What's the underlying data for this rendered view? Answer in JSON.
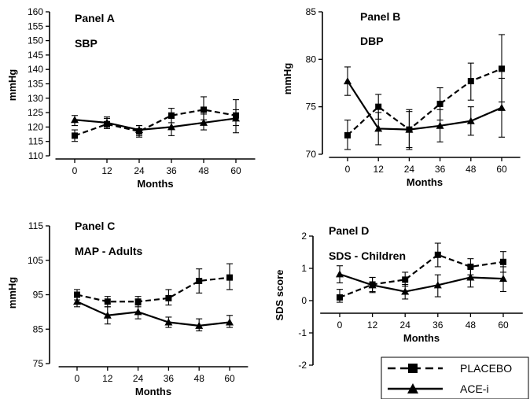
{
  "chart_data": [
    {
      "type": "line",
      "panel_label": "Panel A",
      "measure": "SBP",
      "xlabel": "Months",
      "ylabel": "mmHg",
      "x": [
        0,
        12,
        24,
        36,
        48,
        60
      ],
      "xlim": [
        -6,
        66
      ],
      "ylim": [
        110,
        160
      ],
      "yticks": [
        110,
        115,
        120,
        125,
        130,
        135,
        140,
        145,
        150,
        155,
        160
      ],
      "series": [
        {
          "name": "PLACEBO",
          "style": "dashed",
          "marker": "square",
          "values": [
            117,
            121,
            118.5,
            124,
            126,
            124
          ],
          "err_low": [
            115,
            119.5,
            116.5,
            121.5,
            122.5,
            118
          ],
          "err_high": [
            119,
            123,
            120.5,
            126.5,
            130.5,
            129.5
          ]
        },
        {
          "name": "ACE-i",
          "style": "solid",
          "marker": "triangle",
          "values": [
            122.5,
            121.5,
            119,
            120,
            121.5,
            123
          ],
          "err_low": [
            120.5,
            119.5,
            117,
            117,
            119,
            120.5
          ],
          "err_high": [
            124,
            123.5,
            120.5,
            123,
            124.5,
            126
          ]
        }
      ]
    },
    {
      "type": "line",
      "panel_label": "Panel B",
      "measure": "DBP",
      "xlabel": "Months",
      "ylabel": "mmHg",
      "x": [
        0,
        12,
        24,
        36,
        48,
        60
      ],
      "xlim": [
        -6,
        66
      ],
      "ylim": [
        70,
        85
      ],
      "yticks": [
        70,
        75,
        80,
        85
      ],
      "series": [
        {
          "name": "PLACEBO",
          "style": "dashed",
          "marker": "square",
          "values": [
            72,
            75,
            72.6,
            75.3,
            77.7,
            79
          ],
          "err_low": [
            70.5,
            73.7,
            70.5,
            73.6,
            75.7,
            75.5
          ],
          "err_high": [
            73.6,
            76.3,
            74.7,
            77,
            79.6,
            82.6
          ]
        },
        {
          "name": "ACE-i",
          "style": "solid",
          "marker": "triangle",
          "values": [
            77.7,
            72.7,
            72.6,
            73,
            73.5,
            74.9
          ],
          "err_low": [
            76.2,
            71,
            70.7,
            71.3,
            72,
            71.8
          ],
          "err_high": [
            79.2,
            74.4,
            74.5,
            74.7,
            75,
            78
          ]
        }
      ]
    },
    {
      "type": "line",
      "panel_label": "Panel C",
      "measure": "MAP - Adults",
      "xlabel": "Months",
      "ylabel": "mmHg",
      "x": [
        0,
        12,
        24,
        36,
        48,
        60
      ],
      "xlim": [
        -6,
        66
      ],
      "ylim": [
        75,
        115
      ],
      "yticks": [
        75,
        85,
        95,
        105,
        115
      ],
      "series": [
        {
          "name": "PLACEBO",
          "style": "dashed",
          "marker": "square",
          "values": [
            95,
            93,
            93,
            94,
            99,
            100
          ],
          "err_low": [
            93.5,
            91.5,
            91.5,
            92,
            95.5,
            96.5
          ],
          "err_high": [
            96.5,
            94.5,
            94.5,
            96.5,
            102.5,
            104
          ]
        },
        {
          "name": "ACE-i",
          "style": "solid",
          "marker": "triangle",
          "values": [
            93,
            89,
            90,
            87,
            86,
            87
          ],
          "err_low": [
            91.5,
            86.5,
            88,
            85.5,
            84.5,
            85.5
          ],
          "err_high": [
            94.5,
            91.5,
            92,
            88.5,
            88,
            89
          ]
        }
      ]
    },
    {
      "type": "line",
      "panel_label": "Panel D",
      "measure": "SDS - Children",
      "xlabel": "Months",
      "ylabel": "SDS score",
      "x": [
        0,
        12,
        24,
        36,
        48,
        60
      ],
      "xlim": [
        -6,
        66
      ],
      "ylim": [
        -2,
        2
      ],
      "yticks": [
        -2,
        -1,
        0,
        1,
        2
      ],
      "series": [
        {
          "name": "PLACEBO",
          "style": "dashed",
          "marker": "square",
          "values": [
            0.1,
            0.5,
            0.65,
            1.42,
            1.05,
            1.2
          ],
          "err_low": [
            -0.05,
            0.28,
            0.45,
            1.05,
            0.8,
            0.88
          ],
          "err_high": [
            0.35,
            0.72,
            0.88,
            1.78,
            1.3,
            1.52
          ]
        },
        {
          "name": "ACE-i",
          "style": "solid",
          "marker": "triangle",
          "values": [
            0.82,
            0.48,
            0.28,
            0.48,
            0.72,
            0.68
          ],
          "err_low": [
            0.55,
            0.25,
            0.05,
            0.12,
            0.42,
            0.28
          ],
          "err_high": [
            1.08,
            0.72,
            0.5,
            0.8,
            1.05,
            1.05
          ]
        }
      ]
    }
  ],
  "legend": {
    "placement": "bottom-right",
    "items": [
      {
        "label": "PLACEBO",
        "style": "dashed",
        "marker": "square"
      },
      {
        "label": "ACE-i",
        "style": "solid",
        "marker": "triangle"
      }
    ]
  }
}
